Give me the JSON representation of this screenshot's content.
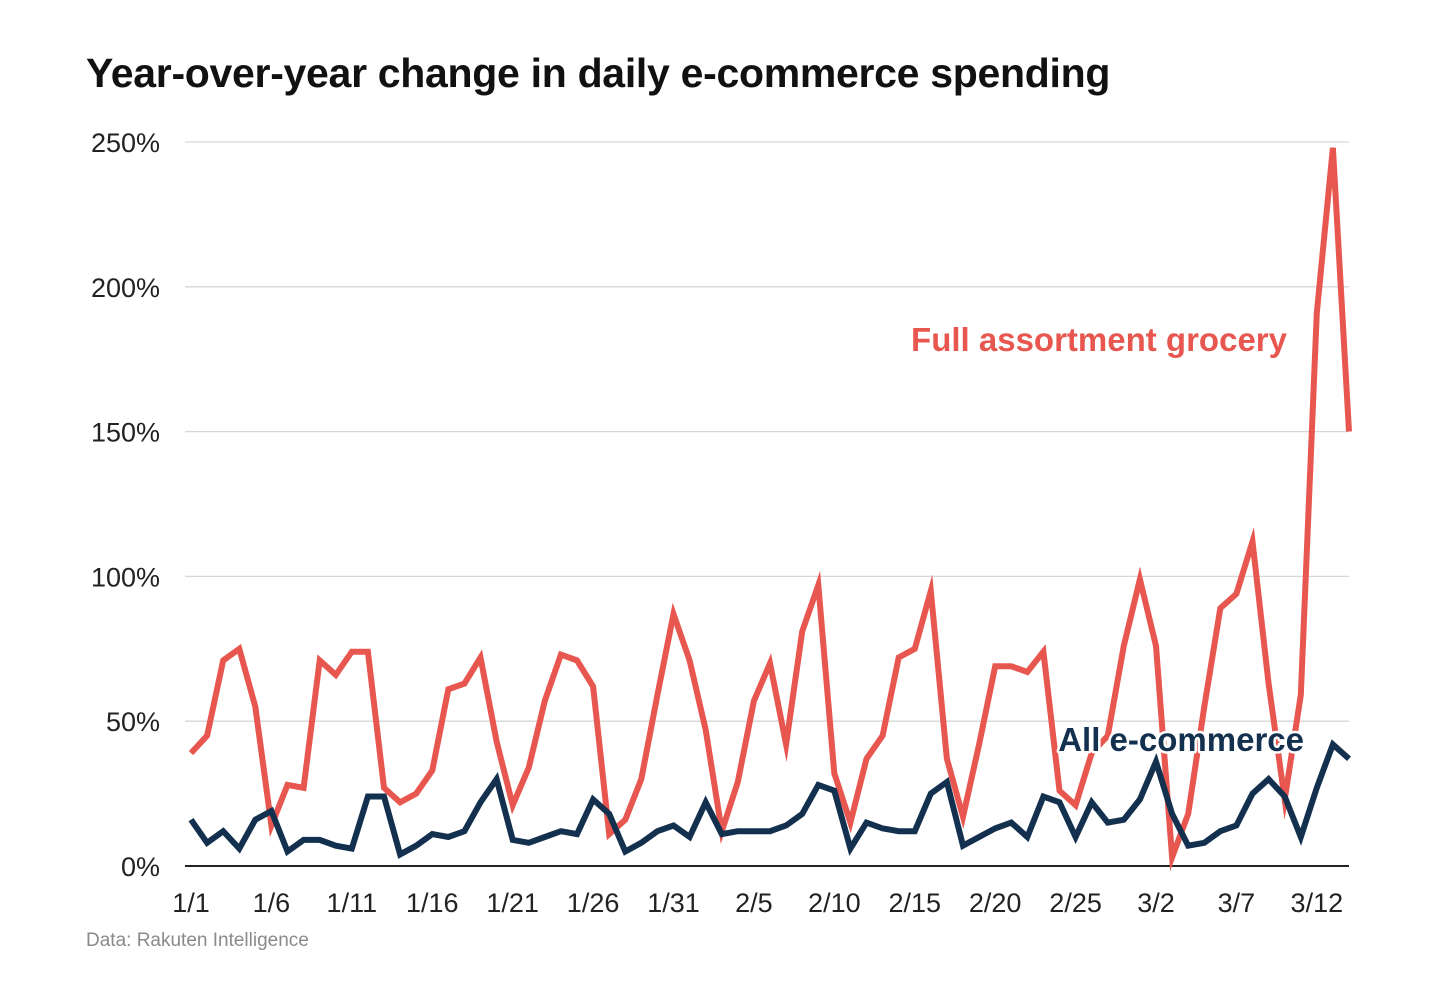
{
  "chart_data": {
    "type": "line",
    "title": "Year-over-year change in daily e-commerce spending",
    "source": "Data: Rakuten Intelligence",
    "ylim": [
      0,
      250
    ],
    "yticks": [
      0,
      50,
      100,
      150,
      200,
      250
    ],
    "ytick_labels": [
      "0%",
      "50%",
      "100%",
      "150%",
      "200%",
      "250%"
    ],
    "x_tick_labels": [
      "1/1",
      "1/6",
      "1/11",
      "1/16",
      "1/21",
      "1/26",
      "1/31",
      "2/5",
      "2/10",
      "2/15",
      "2/20",
      "2/25",
      "3/2",
      "3/7",
      "3/12"
    ],
    "x_tick_every": 5,
    "grid": "horizontal",
    "colors": {
      "grocery": "#e8574f",
      "all": "#13304f",
      "grid": "#d7d7d7",
      "axis": "#222222"
    },
    "series": [
      {
        "key": "grocery",
        "name": "Full assortment grocery",
        "values": [
          39,
          45,
          71,
          75,
          55,
          14,
          28,
          27,
          71,
          66,
          74,
          74,
          27,
          22,
          25,
          33,
          61,
          63,
          72,
          43,
          21,
          34,
          57,
          73,
          71,
          62,
          11,
          16,
          30,
          59,
          87,
          71,
          47,
          12,
          29,
          57,
          70,
          42,
          81,
          97,
          32,
          15,
          37,
          45,
          72,
          75,
          95,
          37,
          17,
          42,
          69,
          69,
          67,
          74,
          26,
          21,
          39,
          45,
          76,
          99,
          76,
          3,
          18,
          55,
          89,
          94,
          112,
          63,
          23,
          59,
          191,
          248,
          150
        ]
      },
      {
        "key": "all",
        "name": "All e-commerce",
        "values": [
          16,
          8,
          12,
          6,
          16,
          19,
          5,
          9,
          9,
          7,
          6,
          24,
          24,
          4,
          7,
          11,
          10,
          12,
          22,
          30,
          9,
          8,
          10,
          12,
          11,
          23,
          18,
          5,
          8,
          12,
          14,
          10,
          22,
          11,
          12,
          12,
          12,
          14,
          18,
          28,
          26,
          6,
          15,
          13,
          12,
          12,
          25,
          29,
          7,
          10,
          13,
          15,
          10,
          24,
          22,
          10,
          22,
          15,
          16,
          23,
          36,
          18,
          7,
          8,
          12,
          14,
          25,
          30,
          24,
          10,
          27,
          42,
          37
        ]
      }
    ]
  }
}
